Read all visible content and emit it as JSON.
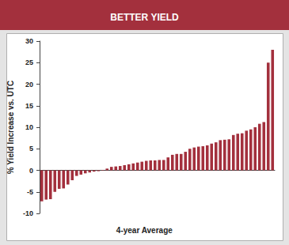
{
  "chart_data": {
    "type": "bar",
    "title": "BETTER YIELD",
    "ylabel": "% Yield Increase vs. UTC",
    "xlabel": "4-year Average",
    "categories": [
      null,
      null,
      null,
      null,
      null,
      null,
      null,
      null,
      null,
      null,
      null,
      null,
      null,
      null,
      null,
      null,
      null,
      null,
      null,
      null,
      null,
      null,
      null,
      null,
      null,
      null,
      null,
      null,
      null,
      null,
      null,
      null,
      null,
      null,
      null,
      null,
      null,
      null,
      null,
      null,
      null,
      null,
      null,
      null,
      null,
      null,
      null,
      null,
      null,
      null,
      null,
      null,
      null,
      null
    ],
    "values": [
      -7.2,
      -6.8,
      -6.7,
      -5,
      -4.3,
      -4.2,
      -3.3,
      -2.3,
      -1.3,
      -1.0,
      -0.7,
      -0.5,
      -0.3,
      -0.2,
      0.1,
      0.4,
      0.8,
      0.9,
      1.0,
      1.2,
      1.4,
      1.6,
      1.8,
      2.0,
      2.2,
      2.3,
      2.3,
      2.4,
      2.4,
      3.0,
      3.6,
      3.8,
      3.8,
      4.3,
      5.0,
      5.3,
      5.5,
      5.6,
      5.8,
      6.2,
      6.5,
      7.0,
      7.1,
      7.2,
      8.2,
      8.5,
      8.6,
      9.2,
      9.5,
      10.0,
      10.8,
      11.2,
      25,
      28
    ],
    "color": "#a3303d",
    "ylim": [
      -10,
      30
    ],
    "yticks": [
      -10,
      -5,
      0,
      5,
      10,
      15,
      20,
      25,
      30
    ],
    "grid": false,
    "tick_labels": "y"
  }
}
